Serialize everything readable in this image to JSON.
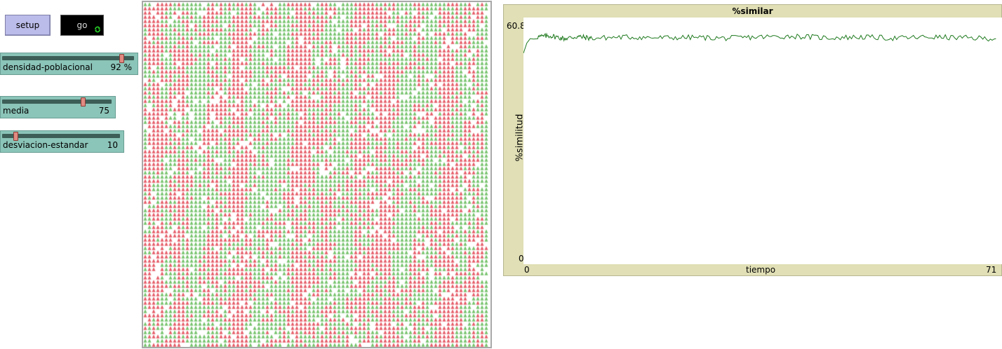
{
  "buttons": {
    "setup_label": "setup",
    "go_label": "go"
  },
  "sliders": [
    {
      "label": "densidad-poblacional",
      "value": "92 %",
      "min": 10,
      "max": 99,
      "current": 92
    },
    {
      "label": "media",
      "value": "75",
      "min": 0,
      "max": 100,
      "current": 75
    },
    {
      "label": "desviacion-estandar",
      "value": "10",
      "min": 0,
      "max": 100,
      "current": 10
    }
  ],
  "world": {
    "colors": {
      "red": "#e55a66",
      "green": "#74c26a",
      "empty": "#ffffff"
    },
    "density": 0.92
  },
  "plot": {
    "title": "%similar",
    "ylabel": "%similitud",
    "xlabel": "tiempo",
    "ymax_label": "60.8",
    "ymin_label": "0",
    "xmin_label": "0",
    "xmax_label": "71",
    "color": "#1f7a1f",
    "chart_data": {
      "type": "line",
      "title": "%similar",
      "xlabel": "tiempo",
      "ylabel": "%similitud",
      "xlim": [
        0,
        71
      ],
      "ylim": [
        0,
        60.8
      ],
      "x": [
        0,
        0.5,
        1,
        2,
        4,
        6,
        8,
        10,
        15,
        20,
        25,
        30,
        35,
        40,
        45,
        50,
        55,
        60,
        65,
        70
      ],
      "values": [
        52,
        54.5,
        55.6,
        56.0,
        56.3,
        55.6,
        56.1,
        55.7,
        56.0,
        55.8,
        55.9,
        55.7,
        56.0,
        56.2,
        55.8,
        56.0,
        55.7,
        56.0,
        55.8,
        55.6
      ]
    }
  }
}
